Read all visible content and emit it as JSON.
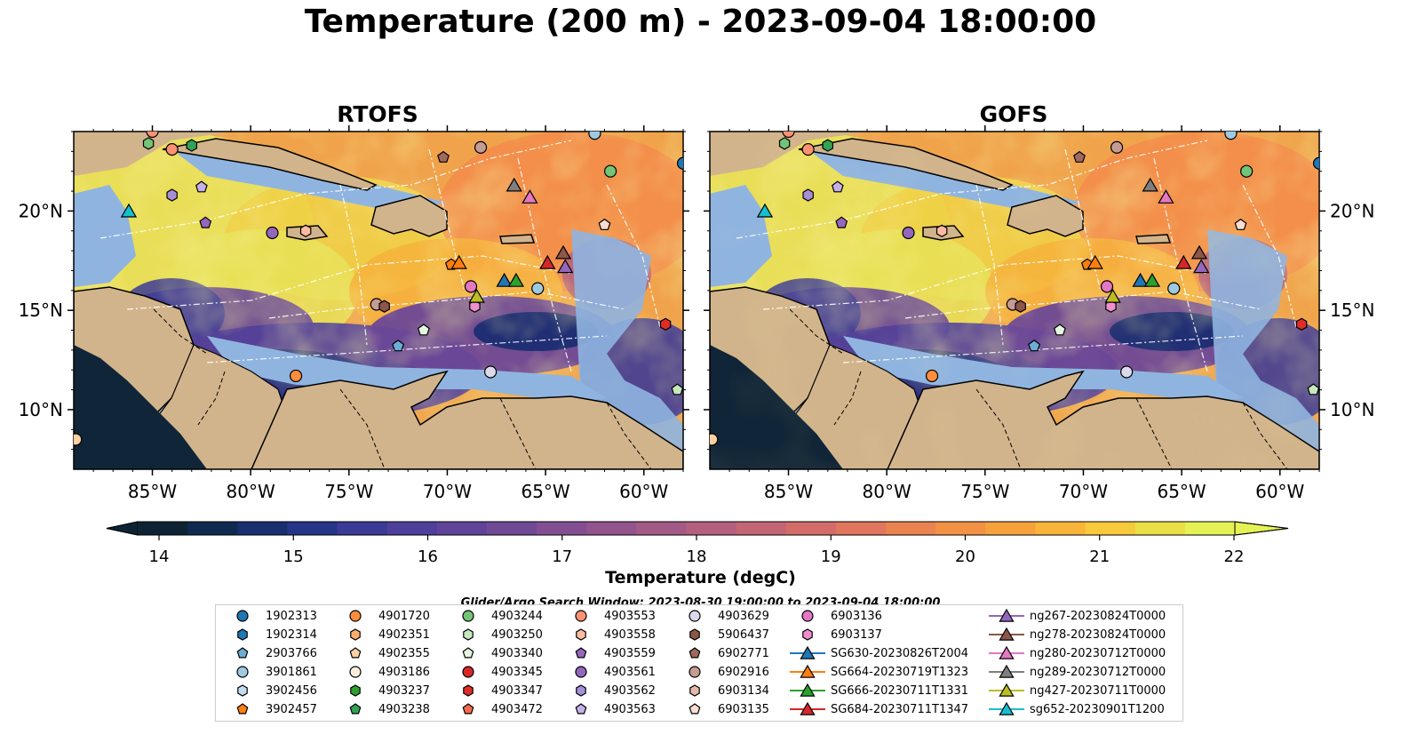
{
  "title": "Temperature (200 m) - 2023-09-04 18:00:00",
  "panels": [
    {
      "title": "RTOFS"
    },
    {
      "title": "GOFS"
    }
  ],
  "axes": {
    "lon_ticks": [
      "85°W",
      "80°W",
      "75°W",
      "70°W",
      "65°W",
      "60°W"
    ],
    "lat_ticks": [
      "20°N",
      "15°N",
      "10°N"
    ],
    "lon_range": [
      -89,
      -58
    ],
    "lat_range": [
      7,
      24
    ]
  },
  "colorbar": {
    "label": "Temperature (degC)",
    "ticks": [
      "14",
      "15",
      "16",
      "17",
      "18",
      "19",
      "20",
      "21",
      "22"
    ],
    "range": [
      14,
      22
    ],
    "extend": "both",
    "colors": [
      "#0d2333",
      "#0f2a4e",
      "#172f6e",
      "#273589",
      "#3a3b96",
      "#4d3f9a",
      "#5f4499",
      "#714a96",
      "#834f92",
      "#93548d",
      "#a45a86",
      "#b45f7e",
      "#c46574",
      "#d36c69",
      "#e0765d",
      "#ea8350",
      "#f29244",
      "#f6a23c",
      "#f8b539",
      "#f7c93c",
      "#eadf45",
      "#e4f255"
    ]
  },
  "search_window": "Glider/Argo Search Window: 2023-08-30 19:00:00 to 2023-09-04 18:00:00",
  "legend": {
    "columns": [
      [
        {
          "label": "1902313",
          "marker": "circle",
          "color": "#1f77b4"
        },
        {
          "label": "1902314",
          "marker": "hexagon",
          "color": "#1f77b4"
        },
        {
          "label": "2903766",
          "marker": "pentagon",
          "color": "#6baed6"
        },
        {
          "label": "3901861",
          "marker": "circle",
          "color": "#9ecae1"
        },
        {
          "label": "3902456",
          "marker": "hexagon",
          "color": "#c6dbef"
        },
        {
          "label": "3902457",
          "marker": "pentagon",
          "color": "#ff7f0e"
        }
      ],
      [
        {
          "label": "4901720",
          "marker": "circle",
          "color": "#fd8d3c"
        },
        {
          "label": "4902351",
          "marker": "hexagon",
          "color": "#fdae6b"
        },
        {
          "label": "4902355",
          "marker": "pentagon",
          "color": "#fdd0a2"
        },
        {
          "label": "4903186",
          "marker": "circle",
          "color": "#feedde"
        },
        {
          "label": "4903237",
          "marker": "hexagon",
          "color": "#2ca02c"
        },
        {
          "label": "4903238",
          "marker": "pentagon",
          "color": "#31a354"
        }
      ],
      [
        {
          "label": "4903244",
          "marker": "circle",
          "color": "#74c476"
        },
        {
          "label": "4903250",
          "marker": "hexagon",
          "color": "#c7e9c0"
        },
        {
          "label": "4903340",
          "marker": "pentagon",
          "color": "#e5f5e0"
        },
        {
          "label": "4903345",
          "marker": "circle",
          "color": "#d62728"
        },
        {
          "label": "4903347",
          "marker": "hexagon",
          "color": "#de2d26"
        },
        {
          "label": "4903472",
          "marker": "pentagon",
          "color": "#fb6a4a"
        }
      ],
      [
        {
          "label": "4903553",
          "marker": "circle",
          "color": "#fc9272"
        },
        {
          "label": "4903558",
          "marker": "hexagon",
          "color": "#fcbba1"
        },
        {
          "label": "4903559",
          "marker": "pentagon",
          "color": "#9467bd"
        },
        {
          "label": "4903561",
          "marker": "circle",
          "color": "#9467bd"
        },
        {
          "label": "4903562",
          "marker": "hexagon",
          "color": "#a58fd8"
        },
        {
          "label": "4903563",
          "marker": "pentagon",
          "color": "#c5b0e8"
        }
      ],
      [
        {
          "label": "4903629",
          "marker": "circle",
          "color": "#dadaeb"
        },
        {
          "label": "5906437",
          "marker": "hexagon",
          "color": "#8c564b"
        },
        {
          "label": "6902771",
          "marker": "pentagon",
          "color": "#a0695d"
        },
        {
          "label": "6902916",
          "marker": "circle",
          "color": "#c49c94"
        },
        {
          "label": "6903134",
          "marker": "hexagon",
          "color": "#e4b9ac"
        },
        {
          "label": "6903135",
          "marker": "pentagon",
          "color": "#f9dcd2"
        }
      ],
      [
        {
          "label": "6903136",
          "marker": "circle",
          "color": "#e377c2"
        },
        {
          "label": "6903137",
          "marker": "hexagon",
          "color": "#f08ed0"
        },
        {
          "label": "SG630-20230826T2004",
          "marker": "triangle",
          "color": "#1f77b4"
        },
        {
          "label": "SG664-20230719T1323",
          "marker": "triangle",
          "color": "#ff7f0e"
        },
        {
          "label": "SG666-20230711T1331",
          "marker": "triangle",
          "color": "#2ca02c"
        },
        {
          "label": "SG684-20230711T1347",
          "marker": "triangle",
          "color": "#d62728"
        }
      ],
      [
        {
          "label": "ng267-20230824T0000",
          "marker": "triangle",
          "color": "#9467bd"
        },
        {
          "label": "ng278-20230824T0000",
          "marker": "triangle",
          "color": "#8c564b"
        },
        {
          "label": "ng280-20230712T0000",
          "marker": "triangle",
          "color": "#e377c2"
        },
        {
          "label": "ng289-20230712T0000",
          "marker": "triangle",
          "color": "#7f7f7f"
        },
        {
          "label": "ng427-20230711T0000",
          "marker": "triangle",
          "color": "#bcbd22"
        },
        {
          "label": "sg652-20230901T1200",
          "marker": "triangle",
          "color": "#17becf"
        }
      ]
    ]
  },
  "observations": [
    {
      "lon": -85.0,
      "lat": 24.0,
      "marker": "circle",
      "color": "#fc9272"
    },
    {
      "lon": -85.2,
      "lat": 23.4,
      "marker": "hexagon",
      "color": "#74c476"
    },
    {
      "lon": -84.0,
      "lat": 23.1,
      "marker": "circle",
      "color": "#fc9272"
    },
    {
      "lon": -83.0,
      "lat": 23.3,
      "marker": "hexagon",
      "color": "#31a354"
    },
    {
      "lon": -84.0,
      "lat": 20.8,
      "marker": "hexagon",
      "color": "#a58fd8"
    },
    {
      "lon": -82.5,
      "lat": 21.2,
      "marker": "pentagon",
      "color": "#c5b0e8"
    },
    {
      "lon": -82.3,
      "lat": 19.4,
      "marker": "pentagon",
      "color": "#9467bd"
    },
    {
      "lon": -78.9,
      "lat": 18.9,
      "marker": "circle",
      "color": "#9467bd"
    },
    {
      "lon": -77.2,
      "lat": 19.0,
      "marker": "hexagon",
      "color": "#fcbba1"
    },
    {
      "lon": -70.2,
      "lat": 22.7,
      "marker": "pentagon",
      "color": "#a0695d"
    },
    {
      "lon": -68.3,
      "lat": 23.2,
      "marker": "circle",
      "color": "#c49c94"
    },
    {
      "lon": -62.5,
      "lat": 23.9,
      "marker": "circle",
      "color": "#9ecae1"
    },
    {
      "lon": -61.7,
      "lat": 22.0,
      "marker": "circle",
      "color": "#74c476"
    },
    {
      "lon": -58.0,
      "lat": 22.4,
      "marker": "circle",
      "color": "#1f77b4"
    },
    {
      "lon": -62.0,
      "lat": 19.3,
      "marker": "pentagon",
      "color": "#f9dcd2"
    },
    {
      "lon": -65.4,
      "lat": 16.1,
      "marker": "circle",
      "color": "#9ecae1"
    },
    {
      "lon": -68.8,
      "lat": 16.2,
      "marker": "circle",
      "color": "#e377c2"
    },
    {
      "lon": -68.6,
      "lat": 15.2,
      "marker": "hexagon",
      "color": "#f08ed0"
    },
    {
      "lon": -73.6,
      "lat": 15.3,
      "marker": "circle",
      "color": "#c49c94"
    },
    {
      "lon": -73.2,
      "lat": 15.2,
      "marker": "hexagon",
      "color": "#8c564b"
    },
    {
      "lon": -71.2,
      "lat": 14.0,
      "marker": "pentagon",
      "color": "#e5f5e0"
    },
    {
      "lon": -72.5,
      "lat": 13.2,
      "marker": "pentagon",
      "color": "#6baed6"
    },
    {
      "lon": -77.7,
      "lat": 11.7,
      "marker": "circle",
      "color": "#fd8d3c"
    },
    {
      "lon": -67.8,
      "lat": 11.9,
      "marker": "circle",
      "color": "#dadaeb"
    },
    {
      "lon": -88.9,
      "lat": 8.5,
      "marker": "circle",
      "color": "#fdd0a2"
    },
    {
      "lon": -58.9,
      "lat": 14.3,
      "marker": "hexagon",
      "color": "#de2d26"
    },
    {
      "lon": -58.3,
      "lat": 11.0,
      "marker": "pentagon",
      "color": "#c7e9c0"
    },
    {
      "lon": -69.8,
      "lat": 17.3,
      "marker": "pentagon",
      "color": "#ff7f0e"
    }
  ],
  "gliders": [
    {
      "lon": -86.2,
      "lat": 20.0,
      "color": "#17becf"
    },
    {
      "lon": -69.4,
      "lat": 17.4,
      "color": "#ff7f0e"
    },
    {
      "lon": -67.1,
      "lat": 16.5,
      "color": "#1f77b4"
    },
    {
      "lon": -66.5,
      "lat": 16.5,
      "color": "#2ca02c"
    },
    {
      "lon": -64.9,
      "lat": 17.4,
      "color": "#d62728"
    },
    {
      "lon": -68.5,
      "lat": 15.7,
      "color": "#bcbd22"
    },
    {
      "lon": -66.6,
      "lat": 21.3,
      "color": "#7f7f7f"
    },
    {
      "lon": -65.8,
      "lat": 20.7,
      "color": "#e377c2"
    },
    {
      "lon": -64.1,
      "lat": 17.9,
      "color": "#8c564b"
    },
    {
      "lon": -64.0,
      "lat": 17.2,
      "color": "#9467bd"
    }
  ]
}
